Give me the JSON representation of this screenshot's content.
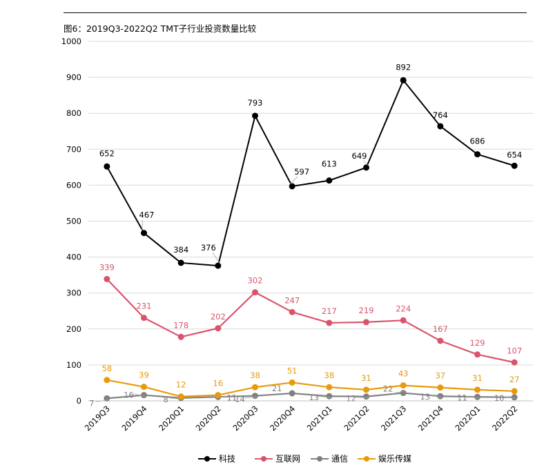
{
  "chart_data": {
    "type": "line",
    "title": "图6：2019Q3-2022Q2 TMT子行业投资数量比较",
    "xlabel": "",
    "ylabel": "",
    "ylim": [
      0,
      1000
    ],
    "yticks": [
      0,
      100,
      200,
      300,
      400,
      500,
      600,
      700,
      800,
      900,
      1000
    ],
    "grid": true,
    "legend_position": "bottom",
    "categories": [
      "2019Q3",
      "2019Q4",
      "2020Q1",
      "2020Q2",
      "2020Q3",
      "2020Q4",
      "2021Q1",
      "2021Q2",
      "2021Q3",
      "2021Q4",
      "2022Q1",
      "2022Q2"
    ],
    "series": [
      {
        "name": "科技",
        "color": "#000000",
        "values": [
          652,
          467,
          384,
          376,
          793,
          597,
          613,
          649,
          892,
          764,
          686,
          654
        ]
      },
      {
        "name": "互联网",
        "color": "#d9546b",
        "values": [
          339,
          231,
          178,
          202,
          302,
          247,
          217,
          219,
          224,
          167,
          129,
          107
        ]
      },
      {
        "name": "通信",
        "color": "#808080",
        "values": [
          7,
          16,
          8,
          11,
          14,
          21,
          13,
          12,
          22,
          13,
          11,
          10
        ]
      },
      {
        "name": "娱乐传媒",
        "color": "#e89a0c",
        "values": [
          58,
          39,
          12,
          16,
          38,
          51,
          38,
          31,
          43,
          37,
          31,
          27
        ]
      }
    ]
  }
}
